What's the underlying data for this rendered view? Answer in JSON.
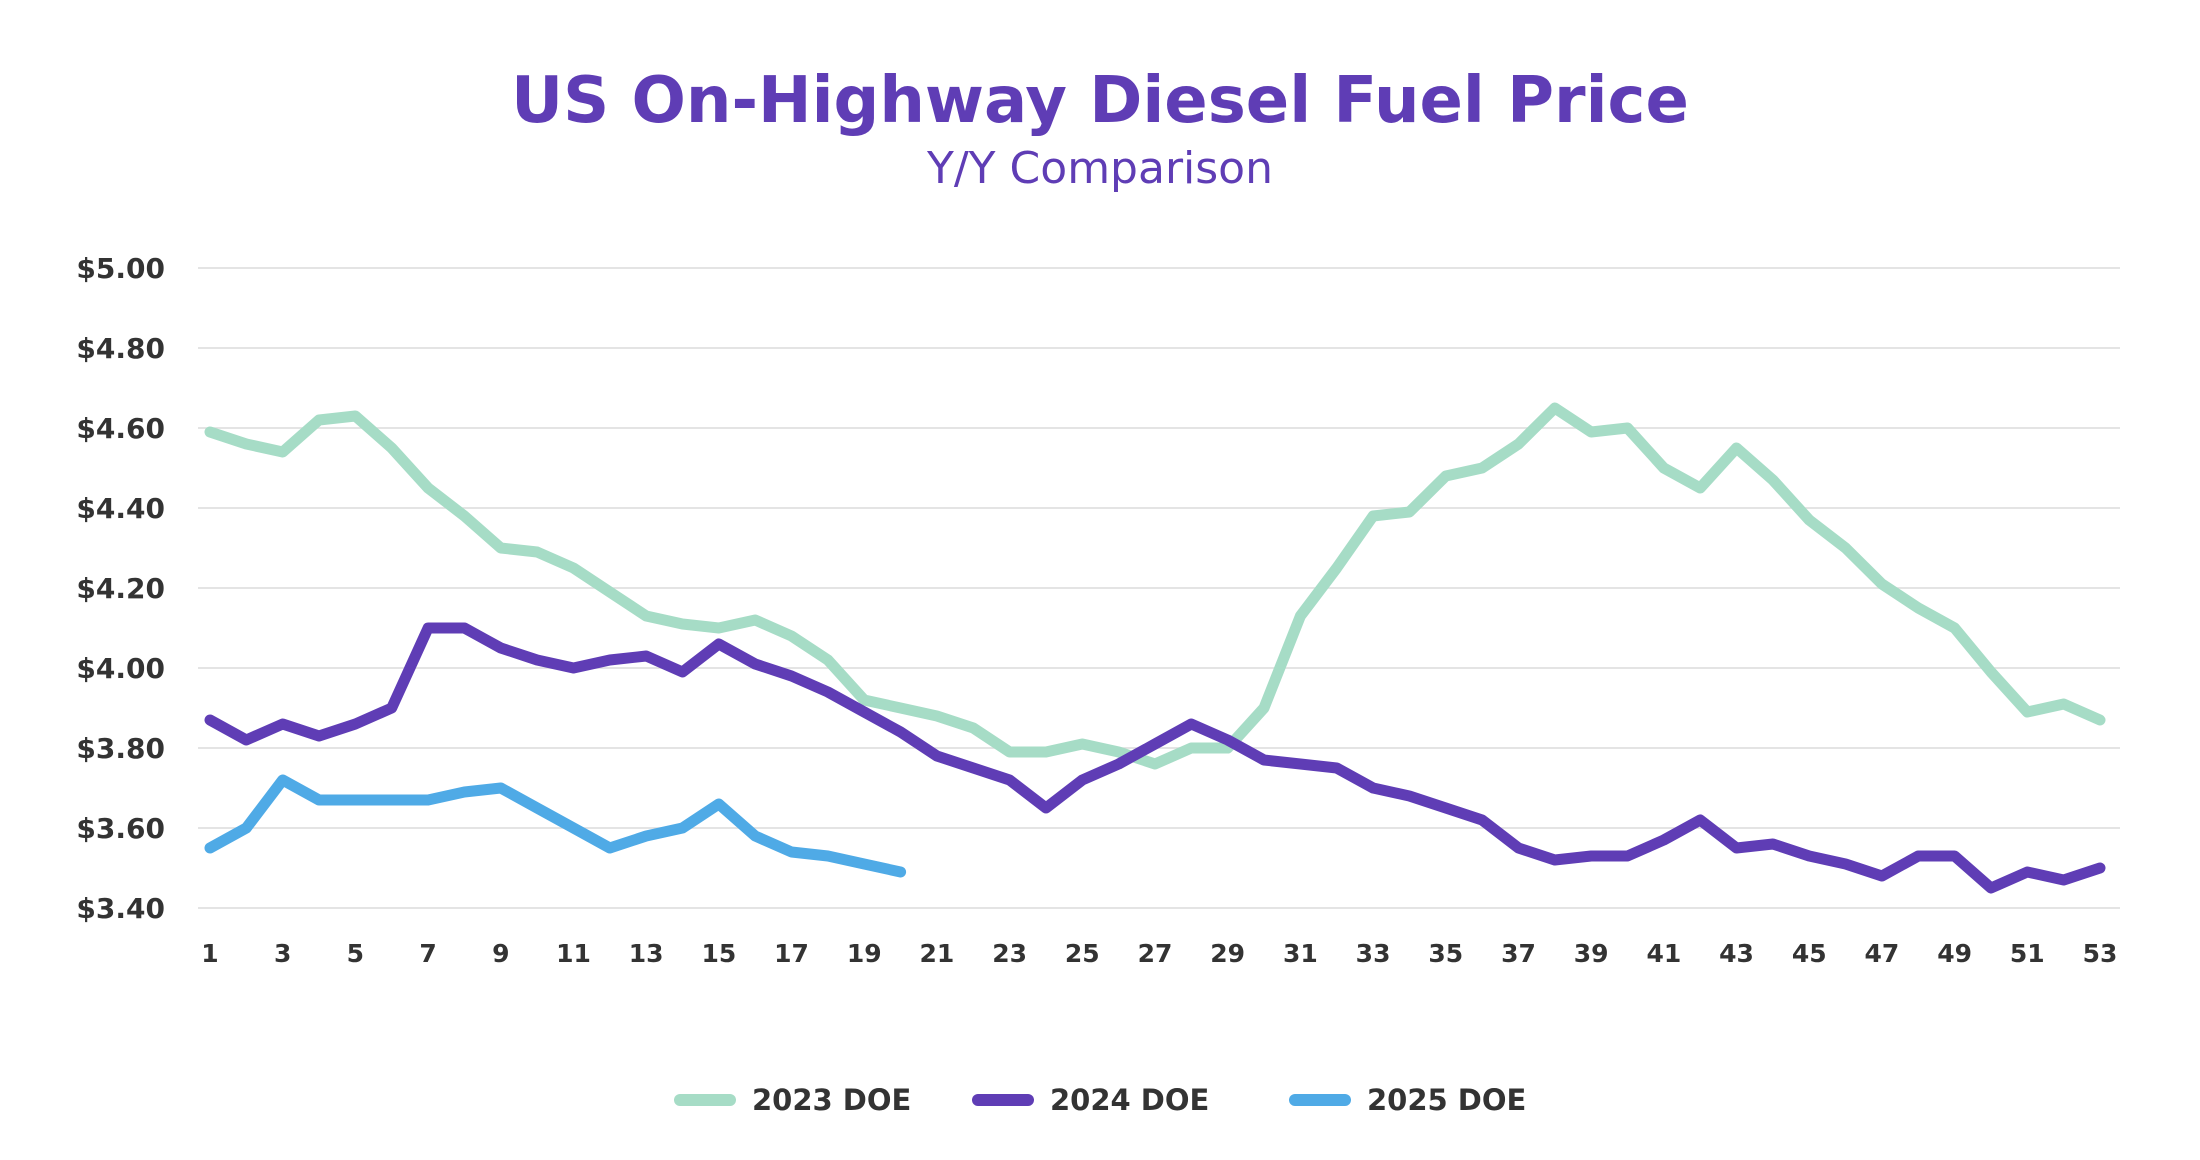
{
  "chart_data": {
    "type": "line",
    "title": "US On-Highway Diesel Fuel Price",
    "subtitle": "Y/Y Comparison",
    "xlabel": "",
    "ylabel": "",
    "ylim": [
      3.4,
      5.0
    ],
    "xlim": [
      1,
      53
    ],
    "y_ticks": [
      "$5.00",
      "$4.80",
      "$4.60",
      "$4.40",
      "$4.20",
      "$4.00",
      "$3.80",
      "$3.60",
      "$3.40"
    ],
    "x_ticks": [
      "1",
      "3",
      "5",
      "7",
      "9",
      "11",
      "13",
      "15",
      "17",
      "19",
      "21",
      "23",
      "25",
      "27",
      "29",
      "31",
      "33",
      "35",
      "37",
      "39",
      "41",
      "43",
      "45",
      "47",
      "49",
      "51",
      "53"
    ],
    "grid": true,
    "legend_position": "bottom",
    "series": [
      {
        "name": "2023 DOE",
        "color": "#a6dcc6",
        "values": [
          4.59,
          4.56,
          4.54,
          4.62,
          4.63,
          4.55,
          4.45,
          4.38,
          4.3,
          4.29,
          4.25,
          4.19,
          4.13,
          4.11,
          4.1,
          4.12,
          4.08,
          4.02,
          3.92,
          3.9,
          3.88,
          3.85,
          3.79,
          3.79,
          3.81,
          3.79,
          3.76,
          3.8,
          3.8,
          3.9,
          4.13,
          4.25,
          4.38,
          4.39,
          4.48,
          4.5,
          4.56,
          4.65,
          4.59,
          4.6,
          4.5,
          4.45,
          4.55,
          4.47,
          4.37,
          4.3,
          4.21,
          4.15,
          4.1,
          3.99,
          3.89,
          3.91,
          3.87
        ]
      },
      {
        "name": "2024 DOE",
        "color": "#5f3db5",
        "values": [
          3.87,
          3.82,
          3.86,
          3.83,
          3.86,
          3.9,
          4.1,
          4.1,
          4.05,
          4.02,
          4.0,
          4.02,
          4.03,
          3.99,
          4.06,
          4.01,
          3.98,
          3.94,
          3.89,
          3.84,
          3.78,
          3.75,
          3.72,
          3.65,
          3.72,
          3.76,
          3.81,
          3.86,
          3.82,
          3.77,
          3.76,
          3.75,
          3.7,
          3.68,
          3.65,
          3.62,
          3.55,
          3.52,
          3.53,
          3.53,
          3.57,
          3.62,
          3.55,
          3.56,
          3.53,
          3.51,
          3.48,
          3.53,
          3.53,
          3.45,
          3.49,
          3.47,
          3.5
        ]
      },
      {
        "name": "2025 DOE",
        "color": "#4faae6",
        "values": [
          3.55,
          3.6,
          3.72,
          3.67,
          3.67,
          3.67,
          3.67,
          3.69,
          3.7,
          3.65,
          3.6,
          3.55,
          3.58,
          3.6,
          3.66,
          3.58,
          3.54,
          3.53,
          3.51,
          3.49
        ]
      }
    ]
  }
}
